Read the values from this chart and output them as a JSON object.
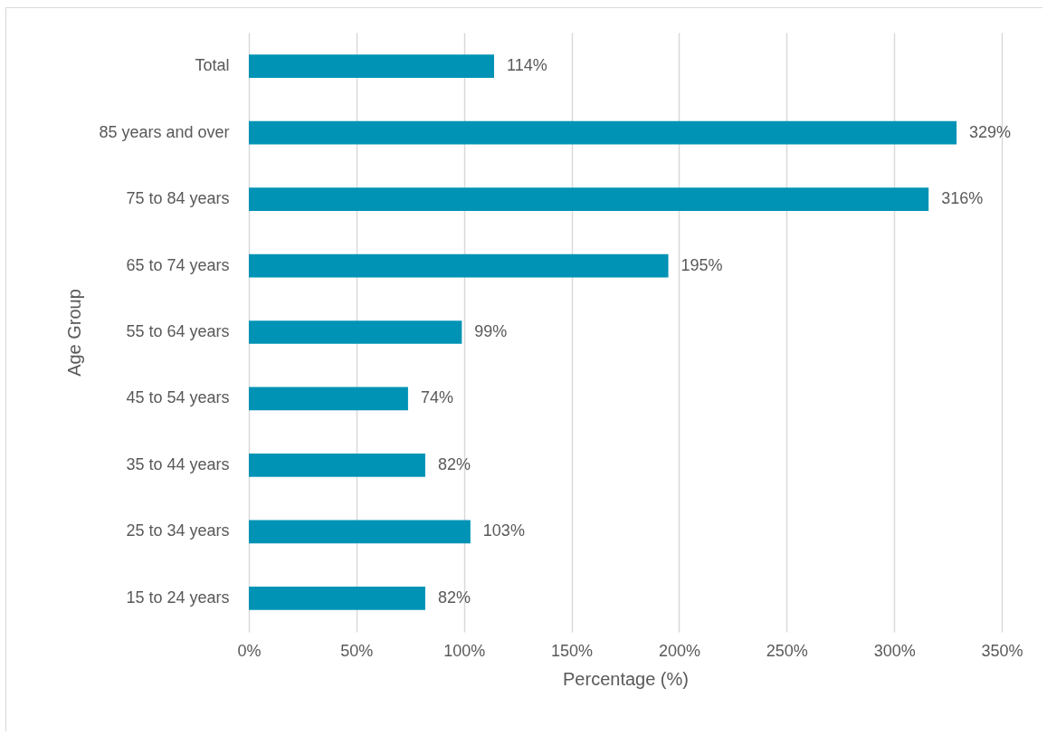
{
  "chart_data": {
    "type": "bar",
    "orientation": "horizontal",
    "xlabel": "Percentage (%)",
    "ylabel": "Age Group",
    "categories": [
      "Total",
      "85 years and over",
      "75 to 84 years",
      "65 to 74 years",
      "55 to 64 years",
      "45 to 54 years",
      "35 to 44 years",
      "25 to 34 years",
      "15 to 24 years"
    ],
    "values": [
      114,
      329,
      316,
      195,
      99,
      74,
      82,
      103,
      82
    ],
    "value_labels": [
      "114%",
      "329%",
      "316%",
      "195%",
      "99%",
      "74%",
      "82%",
      "103%",
      "82%"
    ],
    "color": "#0093b5",
    "xlim": [
      0,
      350
    ],
    "xticks": [
      {
        "value": 0,
        "label": "0%"
      },
      {
        "value": 50,
        "label": "50%"
      },
      {
        "value": 100,
        "label": "100%"
      },
      {
        "value": 150,
        "label": "150%"
      },
      {
        "value": 200,
        "label": "200%"
      },
      {
        "value": 250,
        "label": "250%"
      },
      {
        "value": 300,
        "label": "300%"
      },
      {
        "value": 350,
        "label": "350%"
      }
    ],
    "grid": "x"
  }
}
